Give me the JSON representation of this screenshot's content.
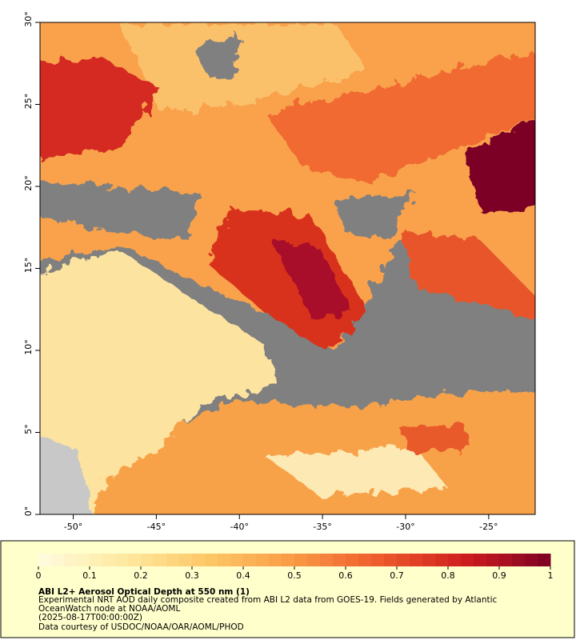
{
  "map": {
    "xlim": [
      -52,
      -22.2
    ],
    "ylim": [
      0,
      30
    ],
    "xticks": [
      {
        "value": -50,
        "label": "-50°"
      },
      {
        "value": -45,
        "label": "-45°"
      },
      {
        "value": -40,
        "label": "-40°"
      },
      {
        "value": -35,
        "label": "-35°"
      },
      {
        "value": -30,
        "label": "-30°"
      },
      {
        "value": -25,
        "label": "-25°"
      }
    ],
    "yticks": [
      {
        "value": 0,
        "label": "0°"
      },
      {
        "value": 5,
        "label": "5°"
      },
      {
        "value": 10,
        "label": "10°"
      },
      {
        "value": 15,
        "label": "15°"
      },
      {
        "value": 20,
        "label": "20°"
      },
      {
        "value": 25,
        "label": "25°"
      },
      {
        "value": 30,
        "label": "30°"
      }
    ]
  },
  "colorbar": {
    "lim": [
      0,
      1
    ],
    "ticks": [
      0,
      0.1,
      0.2,
      0.3,
      0.4,
      0.5,
      0.6,
      0.7,
      0.8,
      0.9,
      1
    ],
    "colors": [
      "#fffbe0",
      "#fee9a0",
      "#fdc766",
      "#f99a45",
      "#ee5a2c",
      "#cf1d1d",
      "#7c0025"
    ]
  },
  "caption": {
    "title": "ABI L2+ Aerosol Optical Depth at 550 nm (1)",
    "lines": [
      "Experimental NRT AOD daily composite created from ABI L2 data from GOES-19. Fields generated by Atlantic",
      "OceanWatch node at NOAA/AOML",
      "(2025-08-17T00:00:00Z)",
      "Data courtesy of USDOC/NOAA/OAR/AOML/PHOD"
    ]
  }
}
